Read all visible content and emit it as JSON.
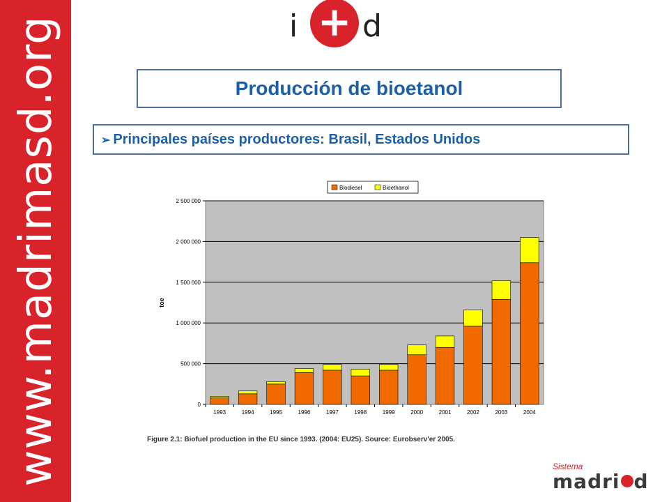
{
  "sidebar": {
    "url_text": "www.madrimasd.org"
  },
  "logo": {
    "left": "i",
    "symbol": "+",
    "right": "d"
  },
  "slide": {
    "title": "Producción de bioetanol",
    "bullet_marker": "➢",
    "bullet": "Principales países productores: Brasil, Estados Unidos"
  },
  "footer_logo": {
    "sistema": "Sistema",
    "brand_left": "madri",
    "brand_right": "d"
  },
  "colors": {
    "sidebar": "#d8232a",
    "title": "#1b5fa8",
    "biodiesel": "#f06a00",
    "bioethanol": "#ffff00",
    "plot_bg": "#c0c0c0"
  },
  "chart_data": {
    "type": "bar",
    "stacked": true,
    "categories": [
      "1993",
      "1994",
      "1995",
      "1996",
      "1997",
      "1998",
      "1999",
      "2000",
      "2001",
      "2002",
      "2003",
      "2004"
    ],
    "series": [
      {
        "name": "Biodiesel",
        "color": "#f06a00",
        "values": [
          80000,
          130000,
          250000,
          390000,
          420000,
          350000,
          420000,
          610000,
          700000,
          960000,
          1290000,
          1740000
        ]
      },
      {
        "name": "Bioethanol",
        "color": "#ffff00",
        "values": [
          20000,
          35000,
          30000,
          50000,
          70000,
          80000,
          70000,
          120000,
          140000,
          200000,
          230000,
          310000
        ]
      }
    ],
    "ylabel": "toe",
    "ylim": [
      0,
      2500000
    ],
    "yticks": [
      "0",
      "500 000",
      "1 000 000",
      "1 500 000",
      "2 000 000",
      "2 500 000"
    ],
    "ytick_values": [
      0,
      500000,
      1000000,
      1500000,
      2000000,
      2500000
    ],
    "grid": true,
    "legend_position": "top",
    "caption": "Figure 2.1:  Biofuel production in the EU since 1993. (2004: EU25). Source: Eurobserv'er 2005."
  }
}
